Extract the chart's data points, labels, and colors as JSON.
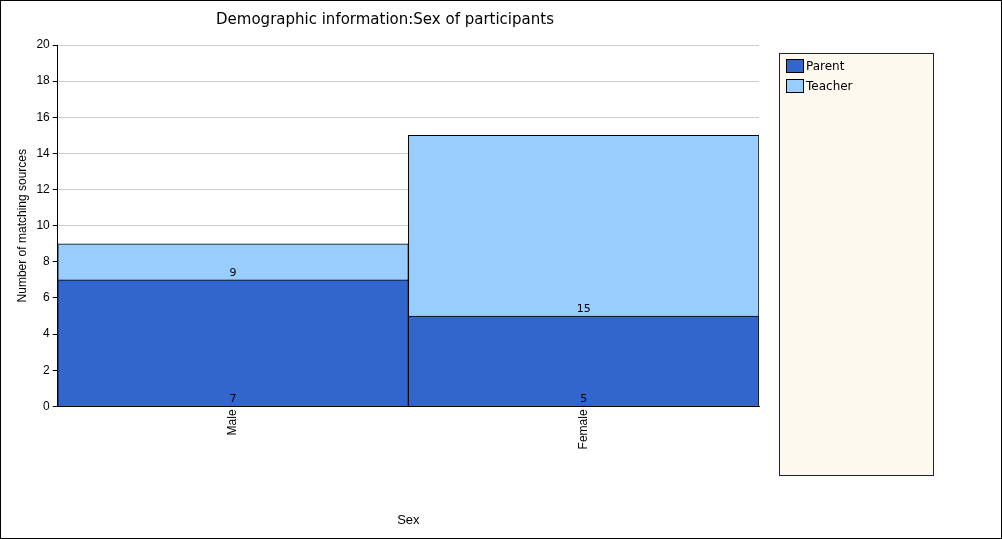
{
  "chart_data": {
    "type": "bar",
    "title": "Demographic information:Sex of participants",
    "xlabel": "Sex",
    "ylabel": "Number of matching sources",
    "categories": [
      "Male",
      "Female"
    ],
    "stacked": true,
    "series": [
      {
        "name": "Parent",
        "color": "#3366cc",
        "values": [
          7,
          5
        ],
        "value_labels": [
          "7",
          "5"
        ]
      },
      {
        "name": "Teacher",
        "color": "#99ccff",
        "values": [
          2,
          10
        ]
      }
    ],
    "totals": [
      "9",
      "15"
    ],
    "ylim": [
      0,
      20
    ],
    "yticks": [
      0,
      2,
      4,
      6,
      8,
      10,
      12,
      14,
      16,
      18,
      20
    ],
    "grid": "y",
    "legend": "right"
  }
}
